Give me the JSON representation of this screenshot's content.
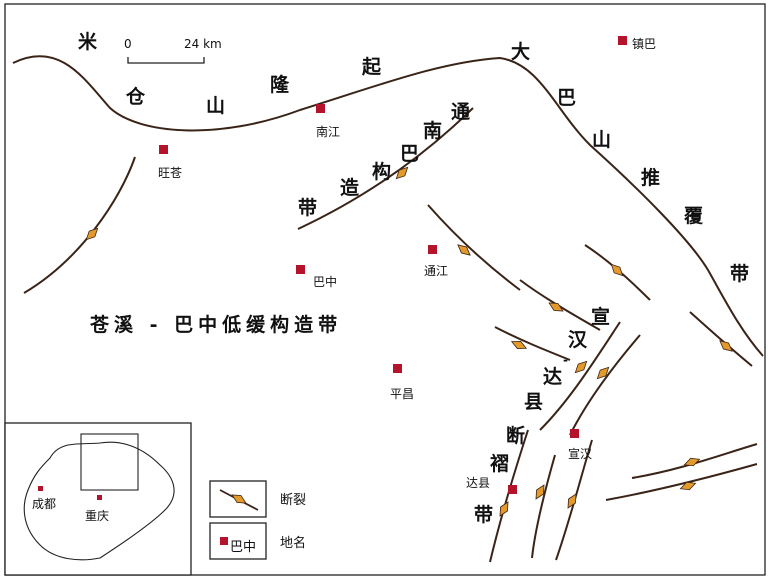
{
  "scale_bar": {
    "start": "0",
    "end": "24 km"
  },
  "regions": {
    "micang": [
      "米",
      "仓",
      "山",
      "隆",
      "起"
    ],
    "dabashan": [
      "大",
      "巴",
      "山",
      "推",
      "覆",
      "带"
    ],
    "tongnanba": [
      "通",
      "南",
      "巴",
      "构",
      "造",
      "带"
    ],
    "cangxi": "苍溪 - 巴中低缓构造带",
    "xuanhan": [
      "宣",
      "汉",
      "-",
      "达",
      "县",
      "断",
      "褶",
      "带"
    ]
  },
  "cities": {
    "zhenba": "镇巴",
    "nanjiang": "南江",
    "wangcang": "旺苍",
    "bazhong": "巴中",
    "tongjiang": "通江",
    "pingchang": "平昌",
    "xuanhan": "宣汉",
    "daxian": "达县"
  },
  "inset": {
    "chengdu": "成都",
    "chongqing": "重庆"
  },
  "legend": {
    "fault": "断裂",
    "placename": "地名",
    "sample": "巴中"
  },
  "colors": {
    "city_marker": "#b5122b",
    "fault_marker": "#e39a2a",
    "line": "#3a2418"
  }
}
